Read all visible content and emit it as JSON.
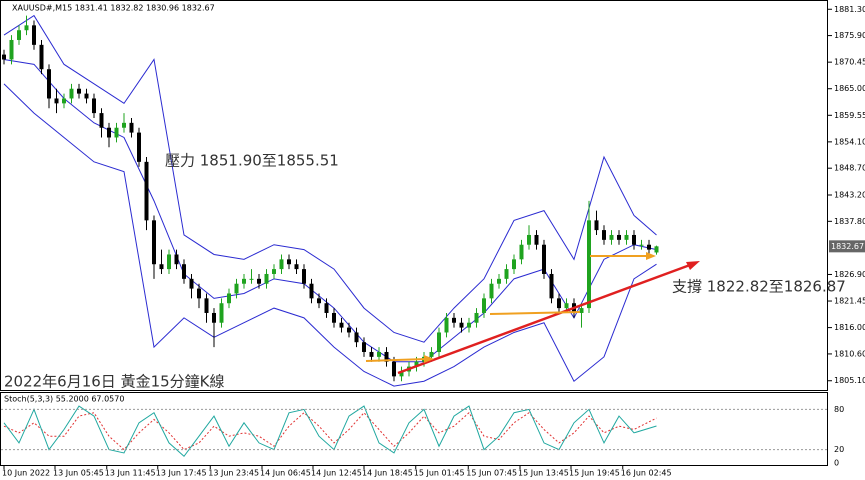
{
  "chart_data": {
    "type": "candlestick",
    "header": "XAUUSD#,M15  1831.41 1832.82 1830.96 1832.67",
    "title": "2022年6月16日 黃金15分鐘K線",
    "annotations": [
      "壓力 1851.90至1855.51",
      "支撐 1822.82至1826.87"
    ],
    "up_color": "#1fa31f",
    "down_color": "#000000",
    "band_color": "#2b2bd1",
    "ylim": [
      1803.2,
      1883.2
    ],
    "yticks": [
      {
        "value": 1881.3,
        "label": "1881.30"
      },
      {
        "value": 1875.9,
        "label": "1875.90"
      },
      1870.45,
      {
        "value": 1865,
        "label": "1865.00"
      },
      1859.55,
      {
        "value": 1854.1,
        "label": "1854.10"
      },
      {
        "value": 1848.7,
        "label": "1848.70"
      },
      {
        "value": 1843.2,
        "label": "1843.20"
      },
      {
        "value": 1837.8,
        "label": "1837.80"
      },
      {
        "value": 1826.9,
        "label": "1826.90"
      },
      1821.45,
      {
        "value": 1816,
        "label": "1816.00"
      },
      {
        "value": 1810.6,
        "label": "1810.60"
      },
      {
        "value": 1805.1,
        "label": "1805.10"
      }
    ],
    "last_price": 1832.67,
    "xlim": [
      -0.5,
      110.5
    ],
    "xticks": [
      {
        "value": 0,
        "label": "10 Jun 2022"
      },
      {
        "value": 6.8,
        "label": "13 Jun 05:45"
      },
      {
        "value": 13.7,
        "label": "13 Jun 11:45"
      },
      {
        "value": 20.5,
        "label": "13 Jun 17:45"
      },
      {
        "value": 27.5,
        "label": "13 Jun 23:45"
      },
      {
        "value": 34.4,
        "label": "14 Jun 06:45"
      },
      {
        "value": 41.2,
        "label": "14 Jun 12:45"
      },
      {
        "value": 48,
        "label": "14 Jun 18:45"
      },
      {
        "value": 54.9,
        "label": "15 Jun 01:45"
      },
      {
        "value": 61.9,
        "label": "15 Jun 07:45"
      },
      {
        "value": 68.8,
        "label": "15 Jun 13:45"
      },
      {
        "value": 75.6,
        "label": "15 Jun 19:45"
      },
      {
        "value": 82.5,
        "label": "16 Jun 02:45"
      }
    ],
    "candles": [
      [
        1872,
        1873,
        1870,
        1871
      ],
      [
        1871,
        1876,
        1870,
        1875
      ],
      [
        1875,
        1878,
        1874,
        1877
      ],
      [
        1877,
        1880,
        1876,
        1878
      ],
      [
        1878,
        1879,
        1873,
        1874
      ],
      [
        1874,
        1875,
        1868,
        1869
      ],
      [
        1869,
        1870,
        1861,
        1863
      ],
      [
        1863,
        1865,
        1860,
        1862
      ],
      [
        1862,
        1864,
        1861,
        1863
      ],
      [
        1863,
        1866,
        1862,
        1865
      ],
      [
        1865,
        1866,
        1863,
        1864
      ],
      [
        1864,
        1865,
        1862,
        1863
      ],
      [
        1863,
        1864,
        1859,
        1860
      ],
      [
        1860,
        1861,
        1855,
        1857
      ],
      [
        1857,
        1858,
        1853,
        1855
      ],
      [
        1855,
        1858,
        1854,
        1857
      ],
      [
        1857,
        1860,
        1856,
        1858
      ],
      [
        1858,
        1859,
        1855,
        1856
      ],
      [
        1856,
        1857,
        1849,
        1850
      ],
      [
        1850,
        1851,
        1836,
        1838
      ],
      [
        1838,
        1839,
        1826,
        1829
      ],
      [
        1829,
        1832,
        1827,
        1828
      ],
      [
        1828,
        1832,
        1827,
        1831
      ],
      [
        1831,
        1832,
        1828,
        1829
      ],
      [
        1829,
        1830,
        1825,
        1826
      ],
      [
        1826,
        1827,
        1822,
        1824
      ],
      [
        1824,
        1825,
        1820,
        1822
      ],
      [
        1822,
        1823,
        1817,
        1819
      ],
      [
        1819,
        1820,
        1812,
        1817
      ],
      [
        1817,
        1822,
        1816,
        1821
      ],
      [
        1821,
        1824,
        1820,
        1823
      ],
      [
        1823,
        1826,
        1822,
        1825
      ],
      [
        1825,
        1827,
        1824,
        1826
      ],
      [
        1826,
        1828,
        1825,
        1826
      ],
      [
        1826,
        1827,
        1824,
        1825
      ],
      [
        1825,
        1828,
        1824,
        1827
      ],
      [
        1827,
        1829,
        1826,
        1828
      ],
      [
        1828,
        1831,
        1827,
        1830
      ],
      [
        1830,
        1831,
        1828,
        1829
      ],
      [
        1829,
        1830,
        1827,
        1828
      ],
      [
        1828,
        1829,
        1824,
        1825
      ],
      [
        1825,
        1826,
        1821,
        1822
      ],
      [
        1822,
        1823,
        1820,
        1821
      ],
      [
        1821,
        1822,
        1818,
        1819
      ],
      [
        1819,
        1820,
        1816,
        1817
      ],
      [
        1817,
        1818,
        1815,
        1816
      ],
      [
        1816,
        1817,
        1814,
        1815
      ],
      [
        1815,
        1816,
        1812,
        1813
      ],
      [
        1813,
        1814,
        1810,
        1811
      ],
      [
        1811,
        1812,
        1809,
        1810
      ],
      [
        1810,
        1812,
        1809,
        1811
      ],
      [
        1811,
        1812,
        1808,
        1809
      ],
      [
        1809,
        1810,
        1805,
        1806
      ],
      [
        1806,
        1808,
        1805,
        1807
      ],
      [
        1807,
        1809,
        1806,
        1808
      ],
      [
        1808,
        1810,
        1807,
        1809
      ],
      [
        1809,
        1811,
        1808,
        1810
      ],
      [
        1810,
        1812,
        1809,
        1811
      ],
      [
        1811,
        1816,
        1810,
        1815
      ],
      [
        1815,
        1819,
        1814,
        1818
      ],
      [
        1818,
        1819,
        1816,
        1817
      ],
      [
        1817,
        1818,
        1815,
        1816
      ],
      [
        1816,
        1818,
        1815,
        1817
      ],
      [
        1817,
        1820,
        1816,
        1819
      ],
      [
        1819,
        1823,
        1818,
        1822
      ],
      [
        1822,
        1826,
        1821,
        1825
      ],
      [
        1825,
        1827,
        1824,
        1826
      ],
      [
        1826,
        1829,
        1825,
        1828
      ],
      [
        1828,
        1831,
        1827,
        1830
      ],
      [
        1830,
        1834,
        1829,
        1833
      ],
      [
        1833,
        1837,
        1832,
        1835
      ],
      [
        1835,
        1836,
        1832,
        1833
      ],
      [
        1833,
        1834,
        1826,
        1827
      ],
      [
        1827,
        1828,
        1821,
        1822
      ],
      [
        1822,
        1823,
        1819,
        1820
      ],
      [
        1820,
        1822,
        1819,
        1821
      ],
      [
        1821,
        1822,
        1818,
        1819
      ],
      [
        1819,
        1821,
        1816,
        1820
      ],
      [
        1820,
        1842,
        1819,
        1838
      ],
      [
        1838,
        1840,
        1835,
        1836
      ],
      [
        1836,
        1837,
        1833,
        1834
      ],
      [
        1834,
        1836,
        1833,
        1835
      ],
      [
        1835,
        1836,
        1833,
        1834
      ],
      [
        1834,
        1836,
        1833,
        1835
      ],
      [
        1835,
        1836,
        1832,
        1833
      ],
      [
        1833,
        1834,
        1832,
        1833
      ],
      [
        1833,
        1834,
        1831,
        1832
      ],
      [
        1831.41,
        1832.82,
        1830.96,
        1832.67
      ]
    ],
    "bands": {
      "x": [
        0,
        4,
        8,
        12,
        16,
        20,
        24,
        28,
        32,
        36,
        40,
        44,
        48,
        52,
        56,
        60,
        64,
        68,
        72,
        76,
        80,
        84,
        87
      ],
      "upper": [
        1876,
        1880,
        1870,
        1866,
        1862,
        1871,
        1835,
        1831,
        1830,
        1833,
        1832,
        1828,
        1820,
        1815,
        1813,
        1820,
        1826,
        1838,
        1840,
        1830,
        1851,
        1839,
        1835
      ],
      "middle": [
        1871,
        1870,
        1863,
        1858,
        1855,
        1842,
        1827,
        1822,
        1823,
        1826,
        1825,
        1820,
        1813,
        1809,
        1809,
        1814,
        1819,
        1826,
        1828,
        1818,
        1830,
        1833,
        1832
      ],
      "lower": [
        1866,
        1860,
        1855,
        1850,
        1848,
        1812,
        1818,
        1814,
        1817,
        1820,
        1818,
        1812,
        1807,
        1804,
        1805,
        1808,
        1812,
        1815,
        1817,
        1805,
        1810,
        1826,
        1829
      ]
    },
    "stoch": {
      "label": "Stoch(5,3,3) 55.2000 67.0570",
      "main_color": "#20a8a0",
      "signal_color": "#e03030",
      "ylim": [
        0,
        100
      ],
      "yticks": [
        80,
        20,
        0
      ],
      "x": [
        0,
        2,
        4,
        6,
        8,
        10,
        12,
        14,
        16,
        18,
        20,
        22,
        24,
        26,
        28,
        30,
        32,
        34,
        36,
        38,
        40,
        42,
        44,
        46,
        48,
        50,
        52,
        54,
        56,
        58,
        60,
        62,
        64,
        66,
        68,
        70,
        72,
        74,
        76,
        78,
        80,
        82,
        84,
        87
      ],
      "main": [
        60,
        30,
        80,
        20,
        50,
        85,
        70,
        20,
        15,
        60,
        75,
        30,
        10,
        40,
        70,
        25,
        60,
        30,
        20,
        75,
        80,
        40,
        20,
        70,
        85,
        30,
        15,
        60,
        80,
        25,
        70,
        85,
        20,
        40,
        75,
        80,
        30,
        20,
        60,
        80,
        30,
        70,
        45,
        55.2
      ],
      "signal": [
        55,
        45,
        60,
        40,
        40,
        70,
        75,
        40,
        20,
        45,
        65,
        45,
        20,
        30,
        55,
        40,
        45,
        40,
        25,
        55,
        75,
        55,
        30,
        50,
        75,
        50,
        25,
        45,
        70,
        45,
        55,
        75,
        40,
        35,
        60,
        75,
        50,
        30,
        45,
        70,
        45,
        55,
        50,
        67.057
      ]
    }
  }
}
